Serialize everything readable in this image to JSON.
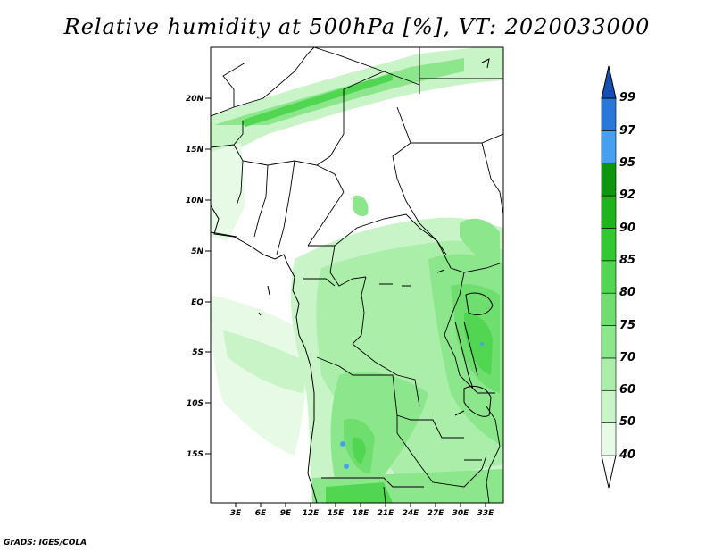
{
  "title": "Relative humidity at 500hPa [%], VT: 2020033000",
  "credit": "GrADS: IGES/COLA",
  "lat_labels": [
    "20N",
    "15N",
    "10N",
    "5N",
    "EQ",
    "5S",
    "10S",
    "15S"
  ],
  "lon_labels": [
    "3E",
    "6E",
    "9E",
    "12E",
    "15E",
    "18E",
    "21E",
    "24E",
    "27E",
    "30E",
    "33E"
  ],
  "colorbar": {
    "levels": [
      "40",
      "50",
      "60",
      "70",
      "75",
      "80",
      "85",
      "90",
      "92",
      "95",
      "97",
      "99"
    ],
    "colors": [
      "#ffffff",
      "#e6fae6",
      "#c8f4c8",
      "#aaeeaa",
      "#8ce68c",
      "#6ede6e",
      "#50d650",
      "#32c832",
      "#1eb41e",
      "#0f960f",
      "#46a0f0",
      "#2878dc",
      "#1450b4"
    ]
  }
}
